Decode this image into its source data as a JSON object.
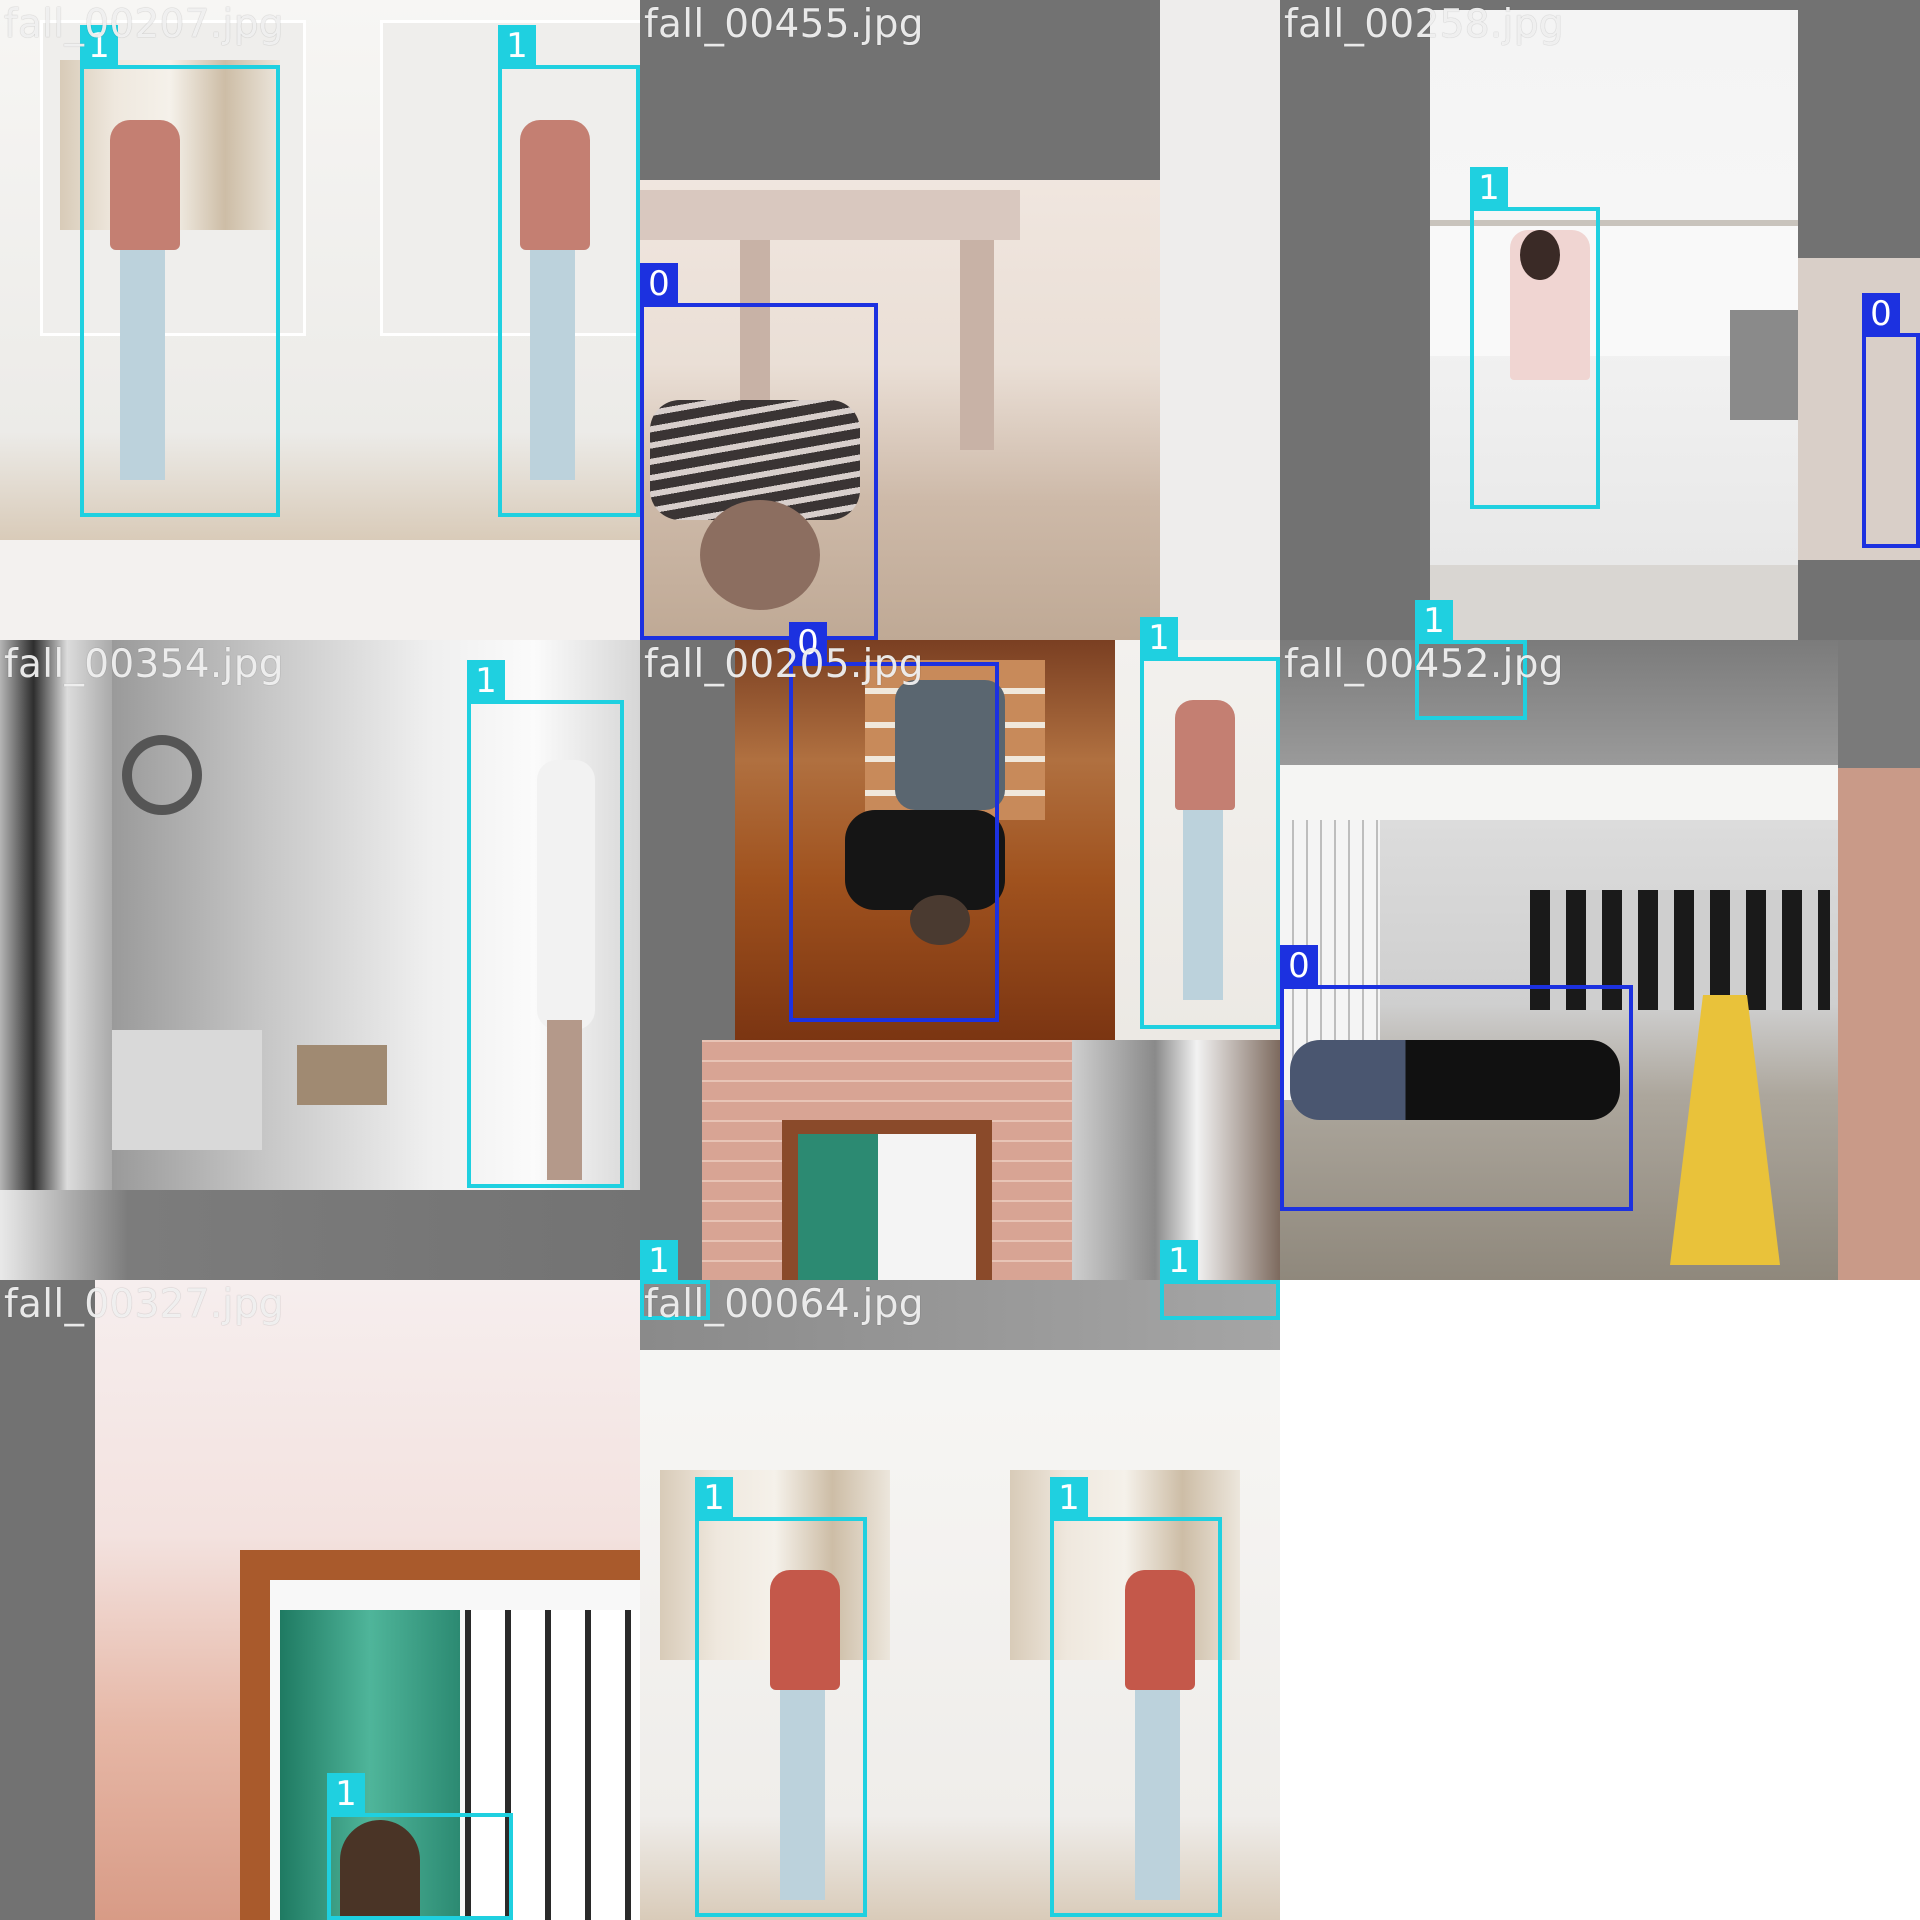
{
  "mosaic": {
    "tiles": [
      {
        "filename": "fall_00207.jpg",
        "boxes": [
          {
            "class": "1"
          },
          {
            "class": "1"
          }
        ]
      },
      {
        "filename": "fall_00455.jpg",
        "boxes": [
          {
            "class": "0"
          }
        ]
      },
      {
        "filename": "fall_00258.jpg",
        "boxes": [
          {
            "class": "1"
          },
          {
            "class": "0"
          }
        ]
      },
      {
        "filename": "fall_00354.jpg",
        "boxes": [
          {
            "class": "1"
          }
        ]
      },
      {
        "filename": "fall_00205.jpg",
        "boxes": [
          {
            "class": "0"
          },
          {
            "class": "1"
          },
          {
            "class": "1"
          },
          {
            "class": "1"
          }
        ]
      },
      {
        "filename": "fall_00452.jpg",
        "boxes": [
          {
            "class": "1"
          },
          {
            "class": "0"
          }
        ]
      },
      {
        "filename": "fall_00327.jpg",
        "boxes": [
          {
            "class": "1"
          }
        ]
      },
      {
        "filename": "fall_00064.jpg",
        "boxes": [
          {
            "class": "1"
          },
          {
            "class": "1"
          }
        ]
      }
    ]
  },
  "colors": {
    "class_0": "#1c31e0",
    "class_1": "#1fd0e0",
    "letterbox": "#727272"
  }
}
